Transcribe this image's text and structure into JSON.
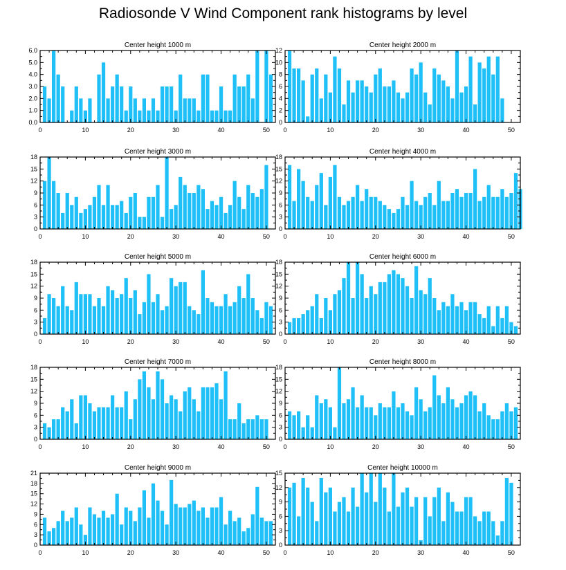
{
  "title": "Radiosonde V Wind Component rank histograms by level",
  "colors": {
    "bar": "#1ec0f7",
    "axis": "#000000",
    "background": "#ffffff"
  },
  "chart_data": [
    {
      "type": "bar",
      "title": "Center height 1000 m",
      "ylim": [
        0,
        6
      ],
      "yticks": [
        "0.0",
        "1.0",
        "2.0",
        "3.0",
        "4.0",
        "5.0",
        "6.0"
      ],
      "xticks": [
        "0",
        "10",
        "20",
        "30",
        "40",
        "50"
      ],
      "values": [
        3,
        2,
        6,
        4,
        3,
        0,
        1,
        3,
        2,
        1,
        2,
        0,
        4,
        5,
        2,
        3,
        4,
        3,
        1,
        3,
        2,
        1,
        2,
        1,
        2,
        1,
        3,
        3,
        3,
        1,
        4,
        2,
        2,
        2,
        1,
        4,
        4,
        1,
        1,
        3,
        1,
        1,
        4,
        3,
        3,
        4,
        2,
        6,
        0,
        6,
        4
      ]
    },
    {
      "type": "bar",
      "title": "Center height 2000 m",
      "ylim": [
        0,
        12
      ],
      "yticks": [
        "0",
        "2",
        "4",
        "6",
        "8",
        "10",
        "12"
      ],
      "xticks": [
        "0",
        "10",
        "20",
        "30",
        "40",
        "50"
      ],
      "values": [
        12,
        9,
        9,
        7,
        1,
        8,
        9,
        4,
        8,
        5,
        11,
        9,
        3,
        7,
        5,
        7,
        7,
        6,
        5,
        8,
        9,
        6,
        6,
        7,
        5,
        4,
        5,
        9,
        8,
        10,
        5,
        3,
        9,
        8,
        7,
        6,
        4,
        12,
        5,
        6,
        11,
        3,
        10,
        9,
        11,
        8,
        11,
        4
      ]
    },
    {
      "type": "bar",
      "title": "Center height 3000 m",
      "ylim": [
        0,
        18
      ],
      "yticks": [
        "0",
        "3",
        "6",
        "9",
        "12",
        "15",
        "18"
      ],
      "xticks": [
        "0",
        "10",
        "20",
        "30",
        "40",
        "50"
      ],
      "values": [
        12,
        18,
        12,
        9,
        4,
        9,
        6,
        8,
        4,
        5,
        6,
        8,
        11,
        6,
        11,
        6,
        6,
        7,
        4,
        8,
        9,
        3,
        3,
        8,
        8,
        11,
        3,
        18,
        5,
        6,
        13,
        11,
        9,
        9,
        11,
        10,
        5,
        7,
        6,
        8,
        4,
        6,
        12,
        8,
        5,
        11,
        9,
        8,
        10,
        16
      ]
    },
    {
      "type": "bar",
      "title": "Center height 4000 m",
      "ylim": [
        0,
        18
      ],
      "yticks": [
        "0",
        "3",
        "6",
        "9",
        "12",
        "15",
        "18"
      ],
      "xticks": [
        "0",
        "10",
        "20",
        "30",
        "40",
        "50"
      ],
      "values": [
        16,
        7,
        15,
        12,
        8,
        7,
        11,
        14,
        6,
        13,
        16,
        8,
        6,
        7,
        8,
        11,
        7,
        10,
        8,
        8,
        7,
        6,
        5,
        4,
        5,
        8,
        6,
        12,
        7,
        6,
        8,
        9,
        6,
        12,
        7,
        7,
        9,
        10,
        8,
        9,
        9,
        15,
        7,
        8,
        11,
        8,
        8,
        10,
        8,
        9,
        14,
        10
      ]
    },
    {
      "type": "bar",
      "title": "Center height 5000 m",
      "ylim": [
        0,
        18
      ],
      "yticks": [
        "0",
        "3",
        "6",
        "9",
        "12",
        "15",
        "18"
      ],
      "xticks": [
        "0",
        "10",
        "20",
        "30",
        "40",
        "50"
      ],
      "values": [
        4,
        10,
        9,
        7,
        12,
        7,
        6,
        13,
        10,
        10,
        10,
        7,
        9,
        7,
        12,
        11,
        9,
        10,
        14,
        9,
        11,
        5,
        8,
        15,
        8,
        10,
        6,
        7,
        14,
        12,
        13,
        13,
        7,
        6,
        5,
        16,
        9,
        8,
        7,
        7,
        10,
        7,
        8,
        12,
        9,
        15,
        9,
        6,
        4,
        8,
        7
      ]
    },
    {
      "type": "bar",
      "title": "Center height 6000 m",
      "ylim": [
        0,
        18
      ],
      "yticks": [
        "0",
        "3",
        "6",
        "9",
        "12",
        "15",
        "18"
      ],
      "xticks": [
        "0",
        "10",
        "20",
        "30",
        "40",
        "50"
      ],
      "values": [
        3,
        4,
        4,
        5,
        6,
        7,
        10,
        4,
        9,
        6,
        10,
        11,
        14,
        18,
        9,
        18,
        15,
        9,
        12,
        10,
        13,
        13,
        15,
        16,
        15,
        14,
        12,
        9,
        17,
        11,
        10,
        14,
        9,
        6,
        8,
        7,
        10,
        7,
        8,
        6,
        8,
        8,
        5,
        4,
        7,
        2,
        7,
        4,
        7,
        3,
        2
      ]
    },
    {
      "type": "bar",
      "title": "Center height 7000 m",
      "ylim": [
        0,
        18
      ],
      "yticks": [
        "0",
        "3",
        "6",
        "9",
        "12",
        "15",
        "18"
      ],
      "xticks": [
        "0",
        "10",
        "20",
        "30",
        "40",
        "50"
      ],
      "values": [
        4,
        3,
        5,
        5,
        8,
        7,
        10,
        4,
        11,
        11,
        9,
        7,
        8,
        8,
        8,
        11,
        8,
        8,
        12,
        5,
        10,
        15,
        17,
        13,
        10,
        17,
        15,
        9,
        11,
        10,
        7,
        12,
        13,
        10,
        7,
        13,
        13,
        13,
        14,
        10,
        17,
        5,
        5,
        9,
        4,
        5,
        5,
        6,
        5,
        5
      ]
    },
    {
      "type": "bar",
      "title": "Center height 8000 m",
      "ylim": [
        0,
        18
      ],
      "yticks": [
        "0",
        "3",
        "6",
        "9",
        "12",
        "15",
        "18"
      ],
      "xticks": [
        "0",
        "10",
        "20",
        "30",
        "40",
        "50"
      ],
      "values": [
        7,
        6,
        7,
        3,
        6,
        3,
        11,
        9,
        10,
        8,
        3,
        18,
        9,
        10,
        13,
        8,
        11,
        8,
        8,
        6,
        9,
        8,
        8,
        12,
        8,
        9,
        7,
        6,
        13,
        10,
        7,
        8,
        16,
        11,
        9,
        13,
        10,
        8,
        9,
        11,
        12,
        11,
        7,
        9,
        6,
        5,
        5,
        7,
        9,
        7,
        8
      ]
    },
    {
      "type": "bar",
      "title": "Center height 9000 m",
      "ylim": [
        0,
        21
      ],
      "yticks": [
        "0",
        "3",
        "6",
        "9",
        "12",
        "15",
        "18",
        "21"
      ],
      "xticks": [
        "0",
        "10",
        "20",
        "30",
        "40",
        "50"
      ],
      "values": [
        8,
        4,
        5,
        7,
        10,
        7,
        8,
        11,
        6,
        3,
        11,
        9,
        8,
        10,
        8,
        9,
        15,
        6,
        11,
        10,
        7,
        11,
        16,
        8,
        18,
        13,
        10,
        6,
        19,
        12,
        11,
        11,
        12,
        13,
        10,
        11,
        8,
        11,
        11,
        14,
        6,
        10,
        7,
        8,
        4,
        5,
        9,
        17,
        8,
        7,
        7
      ]
    },
    {
      "type": "bar",
      "title": "Center height 10000 m",
      "ylim": [
        0,
        15
      ],
      "yticks": [
        "0",
        "3",
        "6",
        "9",
        "12",
        "15"
      ],
      "xticks": [
        "0",
        "10",
        "20",
        "30",
        "40",
        "50"
      ],
      "values": [
        12,
        13,
        6,
        14,
        12,
        9,
        5,
        14,
        11,
        12,
        7,
        9,
        10,
        7,
        12,
        8,
        15,
        11,
        15,
        9,
        15,
        12,
        7,
        15,
        8,
        11,
        12,
        8,
        10,
        1,
        10,
        6,
        10,
        12,
        5,
        11,
        9,
        7,
        7,
        10,
        10,
        6,
        5,
        7,
        7,
        5,
        2,
        5,
        14,
        13
      ]
    }
  ]
}
